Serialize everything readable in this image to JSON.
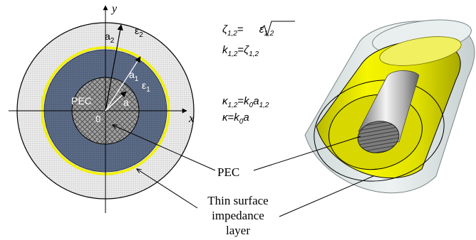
{
  "cross_section": {
    "axis_x": "x",
    "axis_y": "y",
    "origin": "0",
    "center_label": "PEC",
    "radius_a": "a",
    "radius_a1": "a",
    "radius_a1_sub": "1",
    "radius_a2": "a",
    "radius_a2_sub": "2",
    "eps1": "ε",
    "eps1_sub": "1",
    "eps2": "ε",
    "eps2_sub": "2",
    "colors": {
      "outer_layer": "#e2e2e2",
      "inner_layer": "#56657f",
      "impedance_ring": "#f2f200",
      "pec_core": "#9a9a9a"
    }
  },
  "formulas": {
    "line1_lhs_sym": "ζ",
    "line1_lhs_sub": "1,2",
    "line1_eq": "=",
    "line1_sqrt_sym": "ε",
    "line1_sqrt_sub": "1,2",
    "line2_lhs_sym": "k",
    "line2_lhs_sub": "1,2",
    "line2_eq": "=",
    "line2_rhs_sym": "ζ",
    "line2_rhs_sub": "1,2",
    "line3_lhs_sym": "κ",
    "line3_lhs_sub": "1,2",
    "line3_eq": "=",
    "line3_rhs_k": "k",
    "line3_rhs_k_sub": "0",
    "line3_rhs_a": "a",
    "line3_rhs_a_sub": "1,2",
    "line4_lhs": "κ",
    "line4_eq": "=",
    "line4_rhs_k": "k",
    "line4_rhs_k_sub": "0",
    "line4_rhs_a": "a"
  },
  "callouts": {
    "pec": "PEC",
    "impedance_line1": "Thin surface",
    "impedance_line2": "impedance",
    "impedance_line3": "layer"
  },
  "cylinder_3d": {
    "colors": {
      "outer_shell": "#dde4e4",
      "yellow_layer": "#e8e800",
      "pec_rod": "#b8b8b8"
    }
  }
}
